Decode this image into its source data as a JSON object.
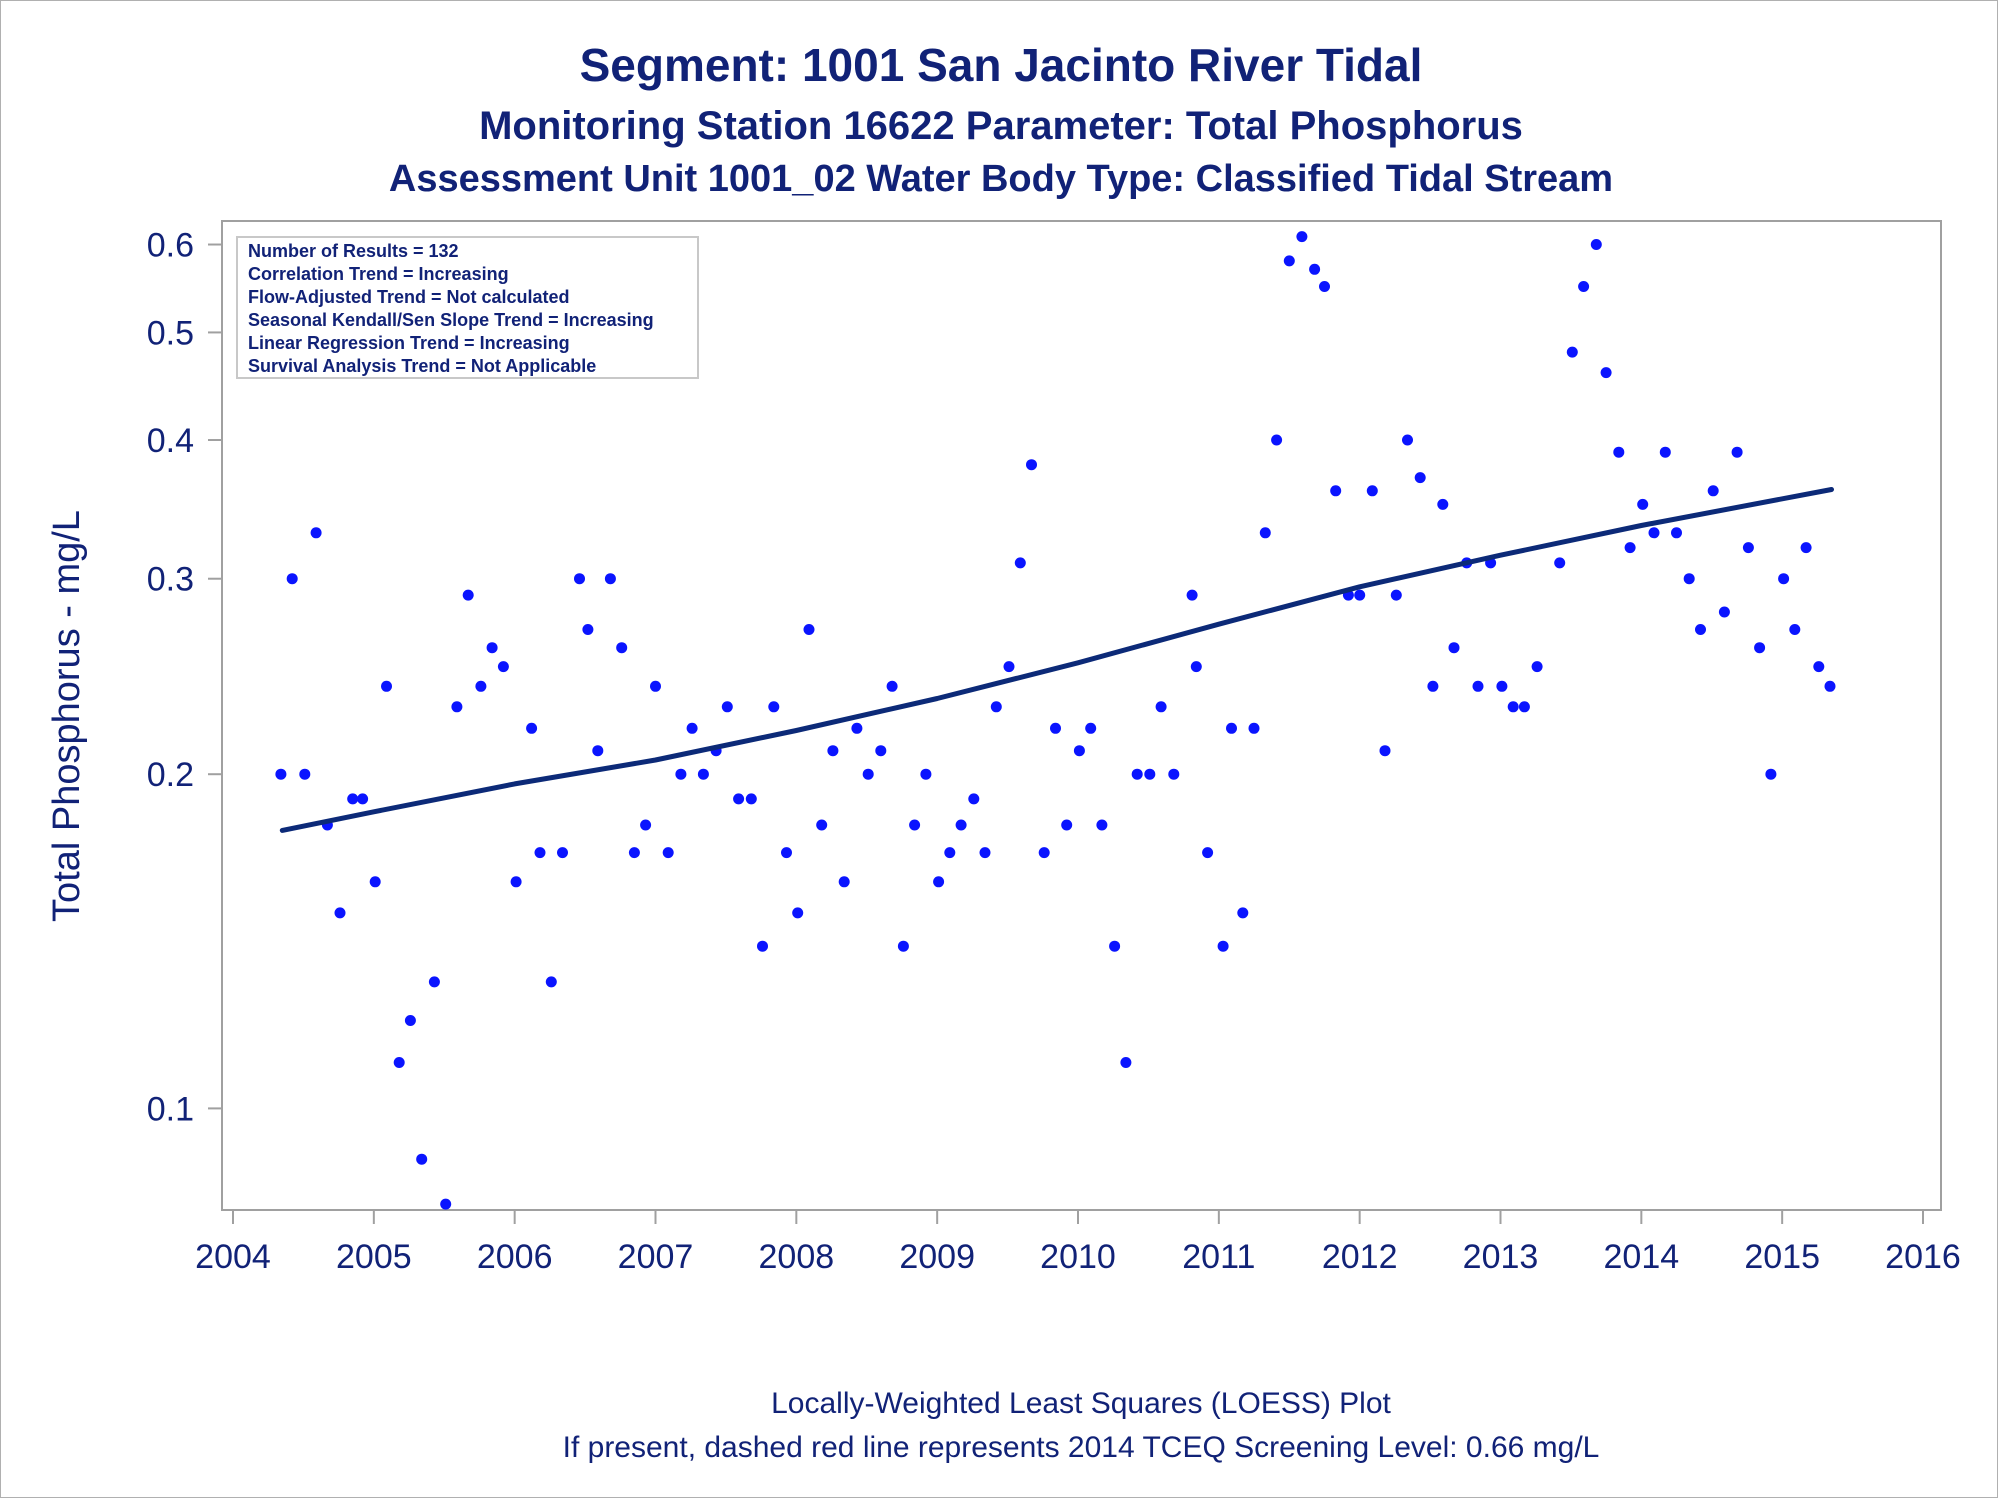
{
  "chart_data": {
    "type": "scatter",
    "title": "Segment: 1001  San Jacinto River Tidal",
    "subtitle": "Monitoring Station 16622 Parameter: Total Phosphorus",
    "subtitle2": "Assessment Unit 1001_02   Water Body Type: Classified Tidal Stream",
    "ylabel": "Total Phosphorus - mg/L",
    "xlabel": "",
    "yscale": "log",
    "ylim": [
      0.081,
      0.63
    ],
    "xlim": [
      2004,
      2016
    ],
    "x_ticks": [
      "2004",
      "2005",
      "2006",
      "2007",
      "2008",
      "2009",
      "2010",
      "2011",
      "2012",
      "2013",
      "2014",
      "2015",
      "2016"
    ],
    "y_ticks": [
      {
        "value": 0.1,
        "label": "0.1"
      },
      {
        "value": 0.2,
        "label": "0.2"
      },
      {
        "value": 0.3,
        "label": "0.3"
      },
      {
        "value": 0.4,
        "label": "0.4"
      },
      {
        "value": 0.5,
        "label": "0.5"
      },
      {
        "value": 0.6,
        "label": "0.6"
      }
    ],
    "grid": false,
    "legend_placement": "top-left",
    "legend_lines": [
      "Number of Results = 132",
      "Correlation Trend = Increasing",
      "Flow-Adjusted Trend = Not calculated",
      "Seasonal Kendall/Sen Slope Trend = Increasing",
      "Linear Regression Trend = Increasing",
      "Survival Analysis Trend = Not Applicable"
    ],
    "footnotes": [
      "Locally-Weighted Least Squares (LOESS) Plot",
      "If present, dashed red line represents 2014 TCEQ Screening Level: 0.66 mg/L"
    ],
    "colors": {
      "points": "#0a14ff",
      "trend": "#0c2a78",
      "text": "#112277",
      "frame": "#a0a0a0"
    },
    "series": [
      {
        "type": "scatter",
        "points": [
          [
            2004.34,
            0.2
          ],
          [
            2004.42,
            0.3
          ],
          [
            2004.51,
            0.2
          ],
          [
            2004.59,
            0.33
          ],
          [
            2004.67,
            0.18
          ],
          [
            2004.76,
            0.15
          ],
          [
            2004.85,
            0.19
          ],
          [
            2004.92,
            0.19
          ],
          [
            2005.01,
            0.16
          ],
          [
            2005.09,
            0.24
          ],
          [
            2005.18,
            0.11
          ],
          [
            2005.26,
            0.12
          ],
          [
            2005.34,
            0.09
          ],
          [
            2005.43,
            0.13
          ],
          [
            2005.51,
            0.082
          ],
          [
            2005.59,
            0.23
          ],
          [
            2005.67,
            0.29
          ],
          [
            2005.76,
            0.24
          ],
          [
            2005.84,
            0.26
          ],
          [
            2005.92,
            0.25
          ],
          [
            2006.01,
            0.16
          ],
          [
            2006.12,
            0.22
          ],
          [
            2006.18,
            0.17
          ],
          [
            2006.26,
            0.13
          ],
          [
            2006.34,
            0.17
          ],
          [
            2006.46,
            0.3
          ],
          [
            2006.52,
            0.27
          ],
          [
            2006.59,
            0.21
          ],
          [
            2006.68,
            0.3
          ],
          [
            2006.76,
            0.26
          ],
          [
            2006.85,
            0.17
          ],
          [
            2006.93,
            0.18
          ],
          [
            2007.0,
            0.24
          ],
          [
            2007.09,
            0.17
          ],
          [
            2007.18,
            0.2
          ],
          [
            2007.26,
            0.22
          ],
          [
            2007.34,
            0.2
          ],
          [
            2007.43,
            0.21
          ],
          [
            2007.51,
            0.23
          ],
          [
            2007.59,
            0.19
          ],
          [
            2007.68,
            0.19
          ],
          [
            2007.76,
            0.14
          ],
          [
            2007.84,
            0.23
          ],
          [
            2007.93,
            0.17
          ],
          [
            2008.01,
            0.15
          ],
          [
            2008.09,
            0.27
          ],
          [
            2008.18,
            0.18
          ],
          [
            2008.26,
            0.21
          ],
          [
            2008.34,
            0.16
          ],
          [
            2008.43,
            0.22
          ],
          [
            2008.51,
            0.2
          ],
          [
            2008.6,
            0.21
          ],
          [
            2008.68,
            0.24
          ],
          [
            2008.76,
            0.14
          ],
          [
            2008.84,
            0.18
          ],
          [
            2008.92,
            0.2
          ],
          [
            2009.01,
            0.16
          ],
          [
            2009.09,
            0.17
          ],
          [
            2009.17,
            0.18
          ],
          [
            2009.26,
            0.19
          ],
          [
            2009.34,
            0.17
          ],
          [
            2009.42,
            0.23
          ],
          [
            2009.51,
            0.25
          ],
          [
            2009.59,
            0.31
          ],
          [
            2009.67,
            0.38
          ],
          [
            2009.76,
            0.17
          ],
          [
            2009.84,
            0.22
          ],
          [
            2009.92,
            0.18
          ],
          [
            2010.01,
            0.21
          ],
          [
            2010.09,
            0.22
          ],
          [
            2010.17,
            0.18
          ],
          [
            2010.26,
            0.14
          ],
          [
            2010.34,
            0.11
          ],
          [
            2010.42,
            0.2
          ],
          [
            2010.51,
            0.2
          ],
          [
            2010.59,
            0.23
          ],
          [
            2010.68,
            0.2
          ],
          [
            2010.81,
            0.29
          ],
          [
            2010.84,
            0.25
          ],
          [
            2010.92,
            0.17
          ],
          [
            2011.03,
            0.14
          ],
          [
            2011.09,
            0.22
          ],
          [
            2011.17,
            0.15
          ],
          [
            2011.25,
            0.22
          ],
          [
            2011.33,
            0.33
          ],
          [
            2011.41,
            0.4
          ],
          [
            2011.5,
            0.58
          ],
          [
            2011.59,
            0.61
          ],
          [
            2011.68,
            0.57
          ],
          [
            2011.75,
            0.55
          ],
          [
            2011.83,
            0.36
          ],
          [
            2011.92,
            0.29
          ],
          [
            2012.0,
            0.29
          ],
          [
            2012.09,
            0.36
          ],
          [
            2012.18,
            0.21
          ],
          [
            2012.26,
            0.29
          ],
          [
            2012.34,
            0.4
          ],
          [
            2012.43,
            0.37
          ],
          [
            2012.52,
            0.24
          ],
          [
            2012.59,
            0.35
          ],
          [
            2012.67,
            0.26
          ],
          [
            2012.76,
            0.31
          ],
          [
            2012.84,
            0.24
          ],
          [
            2012.93,
            0.31
          ],
          [
            2013.01,
            0.24
          ],
          [
            2013.09,
            0.23
          ],
          [
            2013.17,
            0.23
          ],
          [
            2013.26,
            0.25
          ],
          [
            2013.42,
            0.31
          ],
          [
            2013.51,
            0.48
          ],
          [
            2013.59,
            0.55
          ],
          [
            2013.68,
            0.6
          ],
          [
            2013.75,
            0.46
          ],
          [
            2013.84,
            0.39
          ],
          [
            2013.92,
            0.32
          ],
          [
            2014.01,
            0.35
          ],
          [
            2014.09,
            0.33
          ],
          [
            2014.17,
            0.39
          ],
          [
            2014.25,
            0.33
          ],
          [
            2014.34,
            0.3
          ],
          [
            2014.42,
            0.27
          ],
          [
            2014.51,
            0.36
          ],
          [
            2014.59,
            0.28
          ],
          [
            2014.68,
            0.39
          ],
          [
            2014.76,
            0.32
          ],
          [
            2014.84,
            0.26
          ],
          [
            2014.92,
            0.2
          ],
          [
            2015.01,
            0.3
          ],
          [
            2015.09,
            0.27
          ],
          [
            2015.17,
            0.32
          ],
          [
            2015.26,
            0.25
          ],
          [
            2015.34,
            0.24
          ]
        ]
      },
      {
        "type": "line",
        "points": [
          [
            2004.35,
            0.178
          ],
          [
            2005.0,
            0.185
          ],
          [
            2006.0,
            0.196
          ],
          [
            2007.0,
            0.206
          ],
          [
            2008.0,
            0.219
          ],
          [
            2009.0,
            0.234
          ],
          [
            2010.0,
            0.252
          ],
          [
            2011.0,
            0.273
          ],
          [
            2012.0,
            0.295
          ],
          [
            2013.0,
            0.315
          ],
          [
            2014.0,
            0.335
          ],
          [
            2015.35,
            0.361
          ]
        ]
      }
    ]
  }
}
